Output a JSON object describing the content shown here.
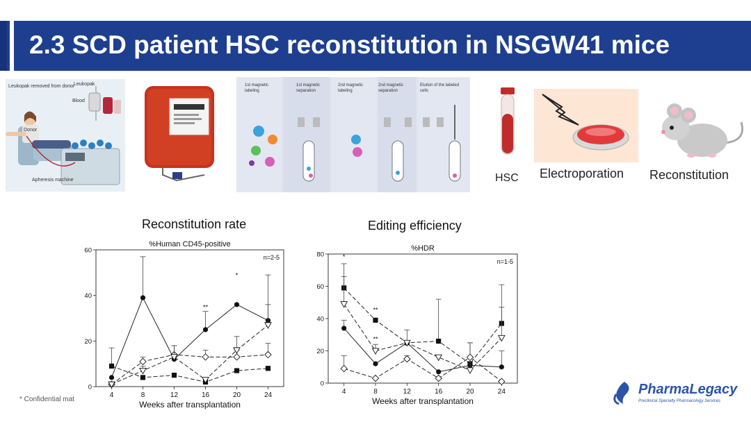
{
  "slide": {
    "title": "2.3 SCD patient HSC reconstitution in NSGW41 mice",
    "confidential": "* Confidential mat",
    "logo": {
      "name": "PharmaLegacy",
      "tagline": "Preclinical Specialty Pharmacology Services"
    }
  },
  "workflow": {
    "apheresis_labels": [
      "Leukopak removed from donor",
      "Leukopak",
      "Blood",
      "Donor",
      "Apheresis machine"
    ],
    "separation_steps": [
      "1st magnetic labeling",
      "1st magnetic separation",
      "2nd magnetic labeling",
      "2nd magnetic separation",
      "Elution of the labeled cells"
    ],
    "steps": [
      "HSC",
      "Electroporation",
      "Reconstitution"
    ]
  },
  "colors": {
    "title_bar": "#1e3f90",
    "blood_bag": "#c8321e",
    "dish": "#e23a3a",
    "logo": "#2a54a8"
  },
  "chart_data": [
    {
      "type": "line",
      "title": "Reconstitution rate",
      "subtitle": "%Human CD45-positive",
      "annotation": "n=2-5",
      "xlabel": "Weeks after transplantation",
      "ylabel": "",
      "x": [
        4,
        8,
        12,
        16,
        20,
        24
      ],
      "xticks": [
        "4",
        "8",
        "12",
        "16",
        "20",
        "24"
      ],
      "yticks": [
        "0",
        "20",
        "40",
        "60"
      ],
      "ylim": [
        0,
        60
      ],
      "series": [
        {
          "marker": "circle-filled",
          "dash": "solid",
          "values": [
            4,
            39,
            12,
            25,
            36,
            29
          ],
          "errors": [
            0,
            18,
            0,
            8,
            0,
            20
          ]
        },
        {
          "marker": "square-filled",
          "dash": "dashed",
          "values": [
            9,
            4,
            5,
            2,
            7,
            8
          ],
          "errors": [
            8,
            0,
            0,
            0,
            0,
            0
          ]
        },
        {
          "marker": "diamond-open",
          "dash": "dashed",
          "values": [
            1,
            11,
            14,
            13,
            13,
            14
          ],
          "errors": [
            0,
            2,
            4,
            3,
            3,
            5
          ]
        },
        {
          "marker": "triangle-open",
          "dash": "dashed",
          "values": [
            1,
            7,
            13,
            3,
            16,
            27
          ],
          "errors": [
            0,
            2,
            5,
            0,
            6,
            9
          ]
        }
      ],
      "significance": [
        {
          "x": 16,
          "label": "**",
          "y": 34
        },
        {
          "x": 20,
          "label": "*",
          "y": 48
        }
      ]
    },
    {
      "type": "line",
      "title": "Editing efficiency",
      "subtitle": "%HDR",
      "annotation": "n=1-5",
      "xlabel": "Weeks after transplantation",
      "ylabel": "",
      "x": [
        4,
        8,
        12,
        16,
        20,
        24
      ],
      "xticks": [
        "4",
        "8",
        "12",
        "16",
        "20",
        "24"
      ],
      "yticks": [
        "0",
        "20",
        "40",
        "60",
        "80"
      ],
      "ylim": [
        0,
        80
      ],
      "series": [
        {
          "marker": "circle-filled",
          "dash": "solid",
          "values": [
            34,
            12,
            25,
            7,
            11,
            10
          ],
          "errors": [
            5,
            0,
            8,
            0,
            14,
            10
          ]
        },
        {
          "marker": "square-filled",
          "dash": "dashed",
          "values": [
            59,
            39,
            25,
            26,
            12,
            37
          ],
          "errors": [
            15,
            0,
            0,
            26,
            0,
            24
          ]
        },
        {
          "marker": "triangle-open",
          "dash": "dashed",
          "values": [
            49,
            20,
            25,
            16,
            8,
            28
          ],
          "errors": [
            17,
            4,
            0,
            0,
            17,
            19
          ]
        },
        {
          "marker": "diamond-open",
          "dash": "dashed",
          "values": [
            9,
            3,
            15,
            3,
            16,
            1
          ],
          "errors": [
            8,
            0,
            2,
            0,
            0,
            0
          ]
        }
      ],
      "significance": [
        {
          "x": 4,
          "label": "*",
          "y": 77
        },
        {
          "x": 8,
          "label": "**",
          "y": 44
        },
        {
          "x": 8,
          "label": "**",
          "y": 26
        }
      ]
    }
  ]
}
